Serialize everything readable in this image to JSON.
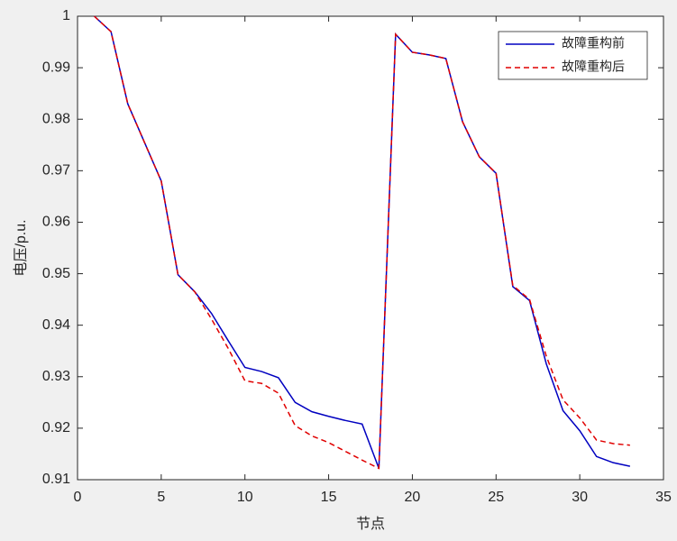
{
  "chart_data": {
    "type": "line",
    "x_label": "节点",
    "y_label": "电压/p.u.",
    "x": [
      1,
      2,
      3,
      4,
      5,
      6,
      7,
      8,
      9,
      10,
      11,
      12,
      13,
      14,
      15,
      16,
      17,
      18,
      19,
      20,
      21,
      22,
      23,
      24,
      25,
      26,
      27,
      28,
      29,
      30,
      31,
      32,
      33
    ],
    "series": [
      {
        "name": "故障重构前",
        "color": "#0000c0",
        "dash": false,
        "values": [
          1.0,
          0.997,
          0.983,
          0.9755,
          0.968,
          0.9498,
          0.9465,
          0.9423,
          0.937,
          0.9318,
          0.931,
          0.9298,
          0.925,
          0.9232,
          0.9223,
          0.9215,
          0.9208,
          0.9122,
          0.9965,
          0.993,
          0.9925,
          0.9918,
          0.9795,
          0.9727,
          0.9695,
          0.9475,
          0.9448,
          0.9325,
          0.9234,
          0.9195,
          0.9145,
          0.9133,
          0.9126
        ]
      },
      {
        "name": "故障重构后",
        "color": "#e00000",
        "dash": true,
        "values": [
          1.0,
          0.997,
          0.983,
          0.9755,
          0.968,
          0.9498,
          0.9465,
          0.9412,
          0.9355,
          0.9292,
          0.9287,
          0.9268,
          0.9205,
          0.9185,
          0.9172,
          0.9155,
          0.9138,
          0.9122,
          0.9965,
          0.993,
          0.9925,
          0.9918,
          0.9795,
          0.9727,
          0.9695,
          0.9477,
          0.945,
          0.934,
          0.9255,
          0.922,
          0.9177,
          0.917,
          0.9167
        ]
      }
    ],
    "xlim": [
      0,
      35
    ],
    "xticks": [
      0,
      5,
      10,
      15,
      20,
      25,
      30,
      35
    ],
    "ylim": [
      0.91,
      1
    ],
    "yticks": [
      0.91,
      0.92,
      0.93,
      0.94,
      0.95,
      0.96,
      0.97,
      0.98,
      0.99,
      1
    ],
    "grid": false,
    "legend": "upper right"
  }
}
